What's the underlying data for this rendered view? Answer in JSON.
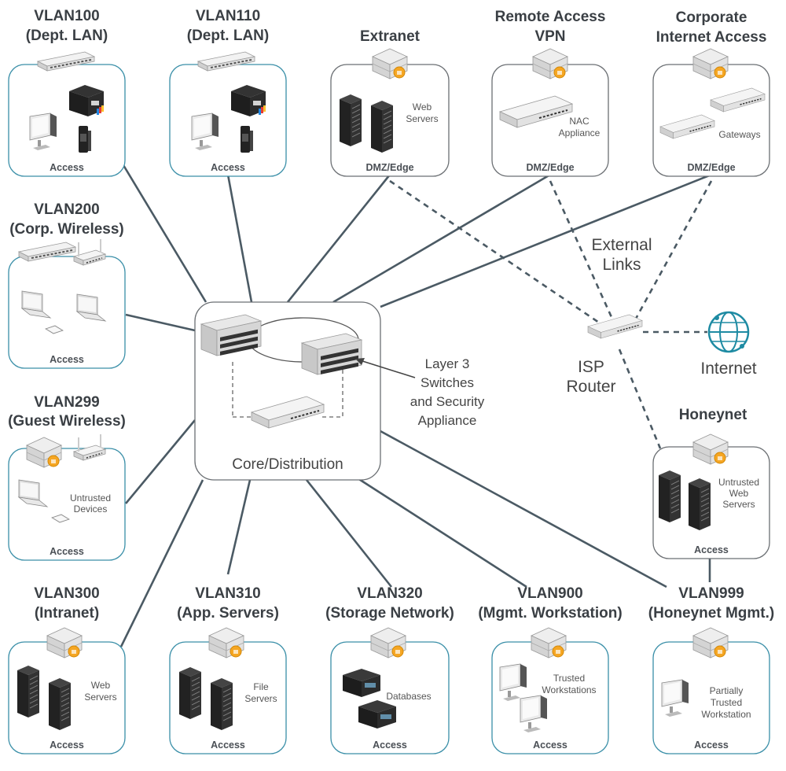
{
  "zones": {
    "vlan100": {
      "title1": "VLAN100",
      "title2": "(Dept. LAN)",
      "zone": "Access"
    },
    "vlan110": {
      "title1": "VLAN110",
      "title2": "(Dept. LAN)",
      "zone": "Access"
    },
    "extranet": {
      "title1": "",
      "title2": "Extranet",
      "zone": "DMZ/Edge",
      "dev1": "Web",
      "dev2": "Servers"
    },
    "remote_vpn": {
      "title1": "Remote Access",
      "title2": "VPN",
      "zone": "DMZ/Edge",
      "dev1": "NAC",
      "dev2": "Appliance"
    },
    "corp_internet": {
      "title1": "Corporate",
      "title2": "Internet Access",
      "zone": "DMZ/Edge",
      "dev1": "Gateways"
    },
    "vlan200": {
      "title1": "VLAN200",
      "title2": "(Corp. Wireless)",
      "zone": "Access"
    },
    "vlan299": {
      "title1": "VLAN299",
      "title2": "(Guest Wireless)",
      "zone": "Access",
      "dev1": "Untrusted",
      "dev2": "Devices"
    },
    "honeynet": {
      "title1": "Honeynet",
      "zone": "Access",
      "dev1": "Untrusted",
      "dev2": "Web",
      "dev3": "Servers"
    },
    "vlan300": {
      "title1": "VLAN300",
      "title2": "(Intranet)",
      "zone": "Access",
      "dev1": "Web",
      "dev2": "Servers"
    },
    "vlan310": {
      "title1": "VLAN310",
      "title2": "(App. Servers)",
      "zone": "Access",
      "dev1": "File",
      "dev2": "Servers"
    },
    "vlan320": {
      "title1": "VLAN320",
      "title2": "(Storage Network)",
      "zone": "Access",
      "dev1": "Databases"
    },
    "vlan900": {
      "title1": "VLAN900",
      "title2": "(Mgmt. Workstation)",
      "zone": "Access",
      "dev1": "Trusted",
      "dev2": "Workstations"
    },
    "vlan999": {
      "title1": "VLAN999",
      "title2": "(Honeynet Mgmt.)",
      "zone": "Access",
      "dev1": "Partially",
      "dev2": "Trusted",
      "dev3": "Workstation"
    }
  },
  "core": {
    "label": "Core/Distribution",
    "callout1": "Layer 3",
    "callout2": "Switches",
    "callout3": "and Security",
    "callout4": "Appliance"
  },
  "external": {
    "links1": "External",
    "links2": "Links",
    "router1": "ISP",
    "router2": "Router",
    "internet": "Internet"
  },
  "colors": {
    "teal": "#3a8fa8",
    "gray": "#6b6f73",
    "line": "#4b5a64",
    "firewall_accent": "#f5a623",
    "globe": "#1e8ba3"
  }
}
